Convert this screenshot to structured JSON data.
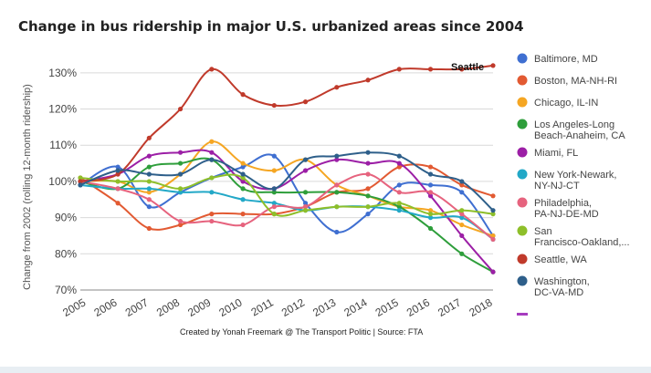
{
  "chart_data": {
    "type": "line",
    "title": "Change in bus ridership in major U.S. urbanized areas since 2004",
    "ylabel": "Change from 2002 (rolling 12-month ridership)",
    "xlabel": "",
    "x": [
      "2005",
      "2006",
      "2007",
      "2008",
      "2009",
      "2010",
      "2011",
      "2012",
      "2013",
      "2014",
      "2015",
      "2016",
      "2017",
      "2018"
    ],
    "x_start": 2004.8,
    "ylim": [
      70,
      135
    ],
    "yticks": [
      70,
      80,
      90,
      100,
      110,
      120,
      130
    ],
    "ytick_labels": [
      "70%",
      "80%",
      "90%",
      "100%",
      "110%",
      "120%",
      "130%"
    ],
    "grid": true,
    "legend_position": "right",
    "annotation": "Seattle",
    "source": "Created by Yonah Freemark @ The Transport Politic | Source: FTA",
    "series": [
      {
        "name": "Baltimore, MD",
        "color": "#3f6fd1",
        "values": [
          99,
          104,
          93,
          97,
          101,
          104,
          107,
          94,
          86,
          91,
          99,
          99,
          97,
          85
        ]
      },
      {
        "name": "Boston, MA-NH-RI",
        "color": "#e25a32",
        "values": [
          101,
          94,
          87,
          88,
          91,
          91,
          91,
          93,
          97,
          98,
          104,
          104,
          99,
          96
        ]
      },
      {
        "name": "Chicago, IL-IN",
        "color": "#f5a623",
        "values": [
          100,
          100,
          97,
          102,
          111,
          105,
          103,
          106,
          99,
          96,
          93,
          92,
          88,
          85
        ]
      },
      {
        "name": "Los Angeles-Long Beach-Anaheim, CA",
        "color": "#2e9e3b",
        "values": [
          100,
          98,
          104,
          105,
          106,
          98,
          97,
          97,
          97,
          96,
          93,
          87,
          80,
          75
        ]
      },
      {
        "name": "Miami, FL",
        "color": "#9c1fa6",
        "values": [
          100,
          102,
          107,
          108,
          108,
          100,
          98,
          103,
          106,
          105,
          105,
          96,
          85,
          75
        ]
      },
      {
        "name": "New York-Newark, NY-NJ-CT",
        "color": "#22a8c7",
        "values": [
          99,
          98,
          98,
          97,
          97,
          95,
          94,
          92,
          93,
          93,
          92,
          90,
          90,
          84
        ]
      },
      {
        "name": "Philadelphia, PA-NJ-DE-MD",
        "color": "#e6637e",
        "values": [
          100,
          98,
          95,
          89,
          89,
          88,
          93,
          93,
          99,
          102,
          97,
          97,
          91,
          84
        ]
      },
      {
        "name": "San Francisco-Oakland,...",
        "color": "#8ebf2a",
        "values": [
          101,
          100,
          100,
          98,
          101,
          101,
          91,
          92,
          93,
          93,
          94,
          91,
          92,
          91
        ]
      },
      {
        "name": "Seattle, WA",
        "color": "#c03a2b",
        "values": [
          100,
          102,
          112,
          120,
          131,
          124,
          121,
          122,
          126,
          128,
          131,
          131,
          131,
          132
        ]
      },
      {
        "name": "Washington, DC-VA-MD",
        "color": "#2e5f8a",
        "values": [
          99,
          103,
          102,
          102,
          106,
          102,
          98,
          106,
          107,
          108,
          107,
          102,
          100,
          92
        ]
      }
    ],
    "extra_legend_color": "#a63cbf"
  }
}
